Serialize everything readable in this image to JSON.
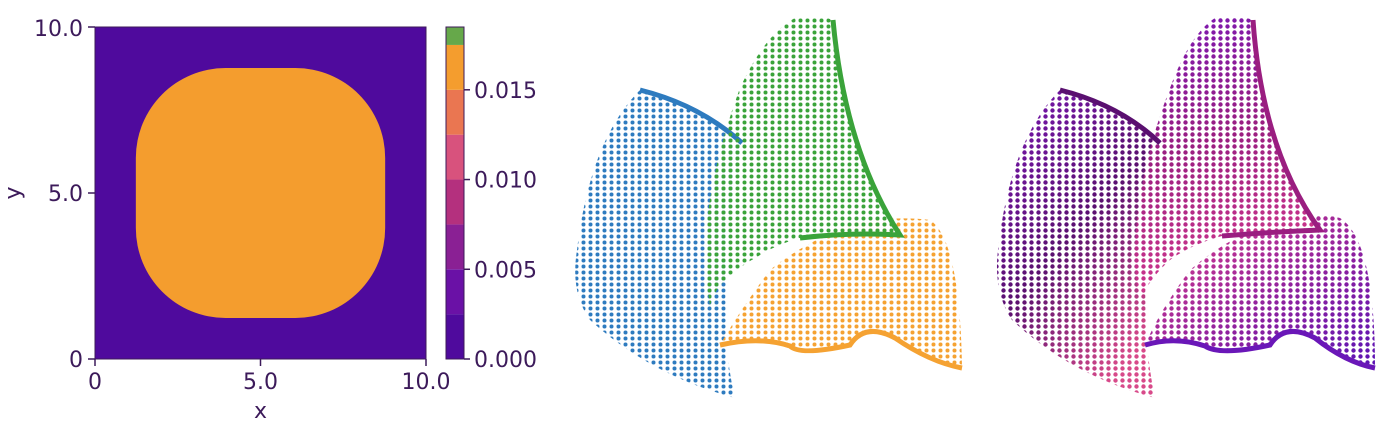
{
  "heatmap": {
    "xlabel": "x",
    "ylabel": "y",
    "x_ticks": [
      "0",
      "5.0",
      "10.0"
    ],
    "y_ticks": [
      "0",
      "5.0",
      "10.0"
    ],
    "xlim": [
      0,
      10
    ],
    "ylim": [
      0,
      10
    ],
    "colorbar": {
      "ticks": [
        "0.000",
        "0.005",
        "0.010",
        "0.015"
      ],
      "tick_values": [
        0.0,
        0.005,
        0.01,
        0.015
      ],
      "range": [
        0,
        0.0185
      ],
      "bands": [
        {
          "to": 0.0025,
          "color": "#4f0a9d"
        },
        {
          "to": 0.005,
          "color": "#6a11a6"
        },
        {
          "to": 0.0075,
          "color": "#8a2094"
        },
        {
          "to": 0.01,
          "color": "#b4307e"
        },
        {
          "to": 0.0125,
          "color": "#d8527d"
        },
        {
          "to": 0.015,
          "color": "#ea7651"
        },
        {
          "to": 0.0175,
          "color": "#f49d2e"
        },
        {
          "to": 0.0185,
          "color": "#66a84a"
        }
      ]
    }
  },
  "chart_data": [
    {
      "type": "heatmap",
      "xlabel": "x",
      "ylabel": "y",
      "xlim": [
        0,
        10
      ],
      "ylim": [
        0,
        10
      ],
      "x_ticks": [
        0,
        5,
        10
      ],
      "y_ticks": [
        0,
        5,
        10
      ],
      "colorbar_range": [
        0,
        0.0185
      ],
      "peak": {
        "x": 5,
        "y": 5,
        "value": 0.0175
      },
      "colormap": "plasma (banded)"
    },
    {
      "type": "scatter",
      "surfaces": [
        {
          "color": "#1f77b4"
        },
        {
          "color": "#2ca02c"
        },
        {
          "color": "#f59e2e"
        }
      ]
    },
    {
      "type": "scatter",
      "colormap": "magma-like"
    }
  ],
  "colors": {
    "blue": "#2e7bbf",
    "green": "#3aa33a",
    "orange": "#f5a232",
    "magenta": "#d2388e",
    "deep_purple": "#4a0f5a",
    "violet": "#6a17b8"
  }
}
